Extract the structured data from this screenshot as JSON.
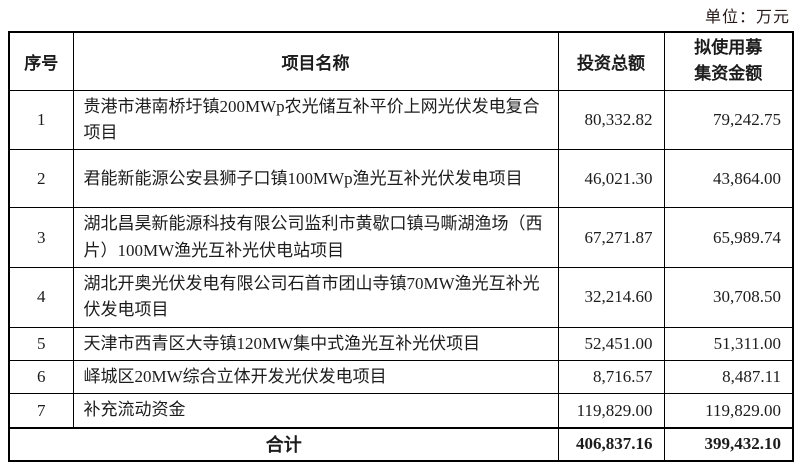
{
  "unit_label": "单位：万元",
  "table": {
    "headers": [
      "序号",
      "项目名称",
      "投资总额",
      "拟使用募集资金额"
    ],
    "rows": [
      {
        "no": "1",
        "name": "贵港市港南桥圩镇200MWp农光储互补平价上网光伏发电复合项目",
        "investment": "80,332.82",
        "raised": "79,242.75"
      },
      {
        "no": "2",
        "name": "君能新能源公安县狮子口镇100MWp渔光互补光伏发电项目",
        "investment": "46,021.30",
        "raised": "43,864.00"
      },
      {
        "no": "3",
        "name": "湖北昌昊新能源科技有限公司监利市黄歇口镇马嘶湖渔场（西片）100MW渔光互补光伏电站项目",
        "investment": "67,271.87",
        "raised": "65,989.74"
      },
      {
        "no": "4",
        "name": "湖北开奥光伏发电有限公司石首市团山寺镇70MW渔光互补光伏发电项目",
        "investment": "32,214.60",
        "raised": "30,708.50"
      },
      {
        "no": "5",
        "name": "天津市西青区大寺镇120MW集中式渔光互补光伏项目",
        "investment": "52,451.00",
        "raised": "51,311.00"
      },
      {
        "no": "6",
        "name": "峄城区20MW综合立体开发光伏发电项目",
        "investment": "8,716.57",
        "raised": "8,487.11"
      },
      {
        "no": "7",
        "name": "补充流动资金",
        "investment": "119,829.00",
        "raised": "119,829.00"
      }
    ],
    "total": {
      "label": "合计",
      "investment": "406,837.16",
      "raised": "399,432.10"
    }
  }
}
